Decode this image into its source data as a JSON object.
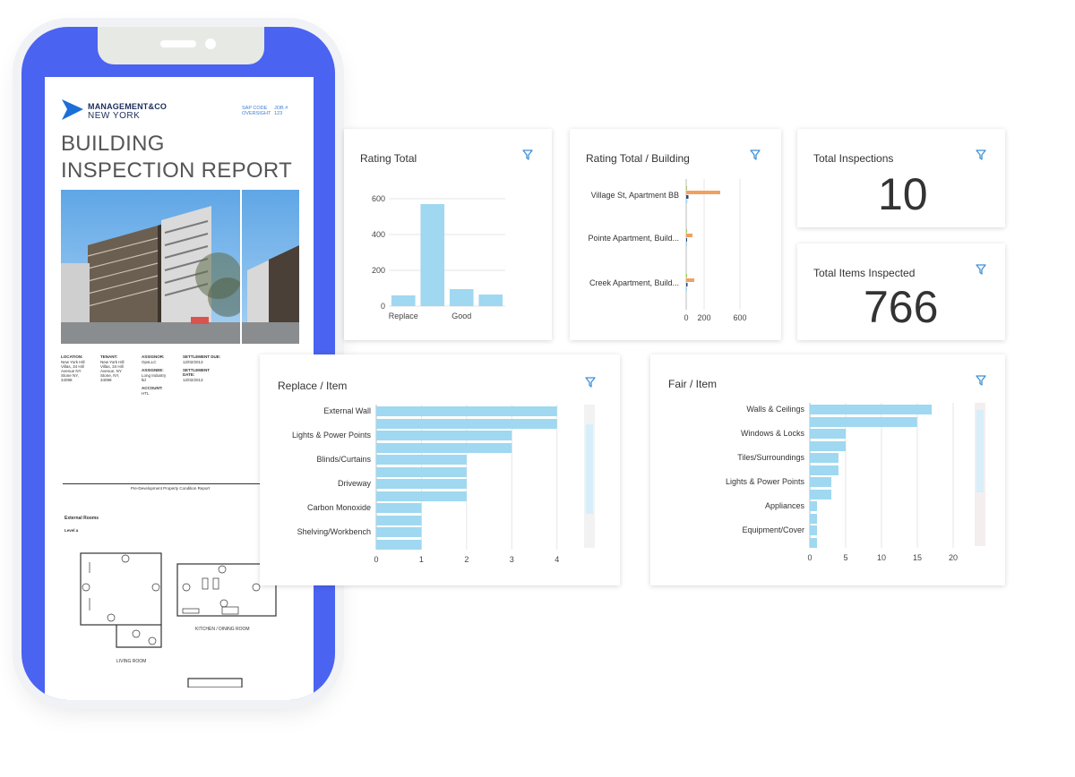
{
  "report": {
    "brand_top": "MANAGEMENT&CO",
    "brand_bottom": "NEW YORK",
    "meta_left_label": "SAP CODE",
    "meta_left_value": "OVERSIGHT",
    "meta_right_label": "JOB #",
    "meta_right_value": "123",
    "title": "BUILDING INSPECTION REPORT",
    "info": [
      {
        "label": "LOCATION:",
        "lines": [
          "New York Hill",
          "Villas, 34 Hill",
          "Avenue NY",
          "Stone NY,",
          "34098"
        ]
      },
      {
        "label": "TENANT:",
        "lines": [
          "New York Hill",
          "Villas, 34 Hill",
          "Avenue, NY",
          "Stone, NY,",
          "34098"
        ]
      },
      {
        "label": "ASSIGNOR:",
        "lines": [
          "OpsLLC"
        ],
        "label2": "ASSIGNEE:",
        "lines2": [
          "Long Industry",
          "ltd"
        ],
        "label3": "ACCOUNT:",
        "lines3": [
          "HTL"
        ]
      },
      {
        "label": "SETTLEMENT DUE:",
        "lines": [
          "12/02/2013"
        ],
        "label2": "SETTLEMENT DATE:",
        "lines2": [
          "12/02/2013"
        ]
      }
    ],
    "floorplan_heading": "Pre-Development Property Condition Report",
    "section": "External Rooms",
    "level": "Level a",
    "room1": "LIVING ROOM",
    "room2": "KITCHEN / DINING ROOM"
  },
  "cards": {
    "rating_total": {
      "title": "Rating Total"
    },
    "rating_building": {
      "title": "Rating Total / Building"
    },
    "total_inspections": {
      "title": "Total Inspections",
      "value": "10"
    },
    "total_items": {
      "title": "Total Items Inspected",
      "value": "766"
    },
    "replace_item": {
      "title": "Replace / Item"
    },
    "fair_item": {
      "title": "Fair / Item"
    }
  },
  "icons": {
    "filter": "filter-funnel-icon",
    "logo": "chevron-logo-icon"
  },
  "colors": {
    "bar": "#9fd8f0",
    "orange": "#f2a05e",
    "green": "#9bd35a",
    "navy": "#264a7a",
    "phone": "#4a63f0",
    "filter": "#3d8fd6"
  },
  "chart_data": [
    {
      "type": "bar",
      "title": "Rating Total",
      "categories": [
        "Replace",
        "",
        "Good",
        ""
      ],
      "values": [
        60,
        570,
        95,
        65
      ],
      "yticks": [
        0,
        200,
        400,
        600
      ],
      "ylim": [
        0,
        640
      ]
    },
    {
      "type": "bar",
      "orientation": "horizontal",
      "title": "Rating Total / Building",
      "categories": [
        "Village St, Apartment BB",
        "Pointe Apartment, Build...",
        "Creek Apartment, Build..."
      ],
      "series": [
        {
          "color": "#9bd35a",
          "values": [
            8,
            2,
            2
          ]
        },
        {
          "color": "#f2a05e",
          "values": [
            380,
            70,
            90
          ]
        },
        {
          "color": "#264a7a",
          "values": [
            25,
            10,
            15
          ]
        },
        {
          "color": "#9fd8f0",
          "values": [
            12,
            5,
            8
          ]
        }
      ],
      "xticks": [
        0,
        200,
        600
      ],
      "xlim": [
        0,
        700
      ]
    },
    {
      "type": "bar",
      "orientation": "horizontal",
      "title": "Replace / Item",
      "categories": [
        "External Wall",
        "Lights & Power Points",
        "Blinds/Curtains",
        "Driveway",
        "Carbon Monoxide",
        "Shelving/Workbench"
      ],
      "values": [
        4,
        3,
        2,
        2,
        1,
        1
      ],
      "xticks": [
        0,
        1,
        2,
        3,
        4
      ],
      "xlim": [
        0,
        4.6
      ]
    },
    {
      "type": "bar",
      "orientation": "horizontal",
      "title": "Fair / Item",
      "categories": [
        "Walls & Ceilings",
        "Windows & Locks",
        "Tiles/Surroundings",
        "Lights & Power Points",
        "Appliances",
        "Equipment/Cover"
      ],
      "values": [
        17,
        5,
        4,
        3,
        1,
        1
      ],
      "xticks": [
        0,
        5,
        10,
        15,
        20
      ],
      "xlim": [
        0,
        23
      ]
    }
  ]
}
